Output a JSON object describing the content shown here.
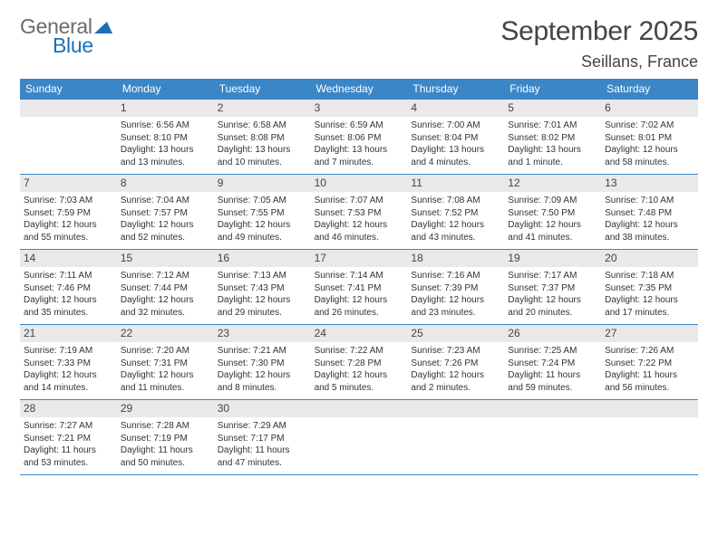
{
  "logo": {
    "word1": "General",
    "word2": "Blue",
    "word1_color": "#6b6b6b",
    "word2_color": "#1d6fb8",
    "triangle_color": "#1d6fb8"
  },
  "title": "September 2025",
  "location": "Seillans, France",
  "colors": {
    "header_bg": "#3b86c7",
    "header_text": "#ffffff",
    "daynum_bg": "#e9e9e9",
    "daynum_text": "#444444",
    "body_text": "#333333",
    "rule": "#3b86c7",
    "page_bg": "#ffffff"
  },
  "day_names": [
    "Sunday",
    "Monday",
    "Tuesday",
    "Wednesday",
    "Thursday",
    "Friday",
    "Saturday"
  ],
  "first_weekday_index": 1,
  "days": [
    {
      "n": 1,
      "sunrise": "6:56 AM",
      "sunset": "8:10 PM",
      "daylight": "13 hours and 13 minutes."
    },
    {
      "n": 2,
      "sunrise": "6:58 AM",
      "sunset": "8:08 PM",
      "daylight": "13 hours and 10 minutes."
    },
    {
      "n": 3,
      "sunrise": "6:59 AM",
      "sunset": "8:06 PM",
      "daylight": "13 hours and 7 minutes."
    },
    {
      "n": 4,
      "sunrise": "7:00 AM",
      "sunset": "8:04 PM",
      "daylight": "13 hours and 4 minutes."
    },
    {
      "n": 5,
      "sunrise": "7:01 AM",
      "sunset": "8:02 PM",
      "daylight": "13 hours and 1 minute."
    },
    {
      "n": 6,
      "sunrise": "7:02 AM",
      "sunset": "8:01 PM",
      "daylight": "12 hours and 58 minutes."
    },
    {
      "n": 7,
      "sunrise": "7:03 AM",
      "sunset": "7:59 PM",
      "daylight": "12 hours and 55 minutes."
    },
    {
      "n": 8,
      "sunrise": "7:04 AM",
      "sunset": "7:57 PM",
      "daylight": "12 hours and 52 minutes."
    },
    {
      "n": 9,
      "sunrise": "7:05 AM",
      "sunset": "7:55 PM",
      "daylight": "12 hours and 49 minutes."
    },
    {
      "n": 10,
      "sunrise": "7:07 AM",
      "sunset": "7:53 PM",
      "daylight": "12 hours and 46 minutes."
    },
    {
      "n": 11,
      "sunrise": "7:08 AM",
      "sunset": "7:52 PM",
      "daylight": "12 hours and 43 minutes."
    },
    {
      "n": 12,
      "sunrise": "7:09 AM",
      "sunset": "7:50 PM",
      "daylight": "12 hours and 41 minutes."
    },
    {
      "n": 13,
      "sunrise": "7:10 AM",
      "sunset": "7:48 PM",
      "daylight": "12 hours and 38 minutes."
    },
    {
      "n": 14,
      "sunrise": "7:11 AM",
      "sunset": "7:46 PM",
      "daylight": "12 hours and 35 minutes."
    },
    {
      "n": 15,
      "sunrise": "7:12 AM",
      "sunset": "7:44 PM",
      "daylight": "12 hours and 32 minutes."
    },
    {
      "n": 16,
      "sunrise": "7:13 AM",
      "sunset": "7:43 PM",
      "daylight": "12 hours and 29 minutes."
    },
    {
      "n": 17,
      "sunrise": "7:14 AM",
      "sunset": "7:41 PM",
      "daylight": "12 hours and 26 minutes."
    },
    {
      "n": 18,
      "sunrise": "7:16 AM",
      "sunset": "7:39 PM",
      "daylight": "12 hours and 23 minutes."
    },
    {
      "n": 19,
      "sunrise": "7:17 AM",
      "sunset": "7:37 PM",
      "daylight": "12 hours and 20 minutes."
    },
    {
      "n": 20,
      "sunrise": "7:18 AM",
      "sunset": "7:35 PM",
      "daylight": "12 hours and 17 minutes."
    },
    {
      "n": 21,
      "sunrise": "7:19 AM",
      "sunset": "7:33 PM",
      "daylight": "12 hours and 14 minutes."
    },
    {
      "n": 22,
      "sunrise": "7:20 AM",
      "sunset": "7:31 PM",
      "daylight": "12 hours and 11 minutes."
    },
    {
      "n": 23,
      "sunrise": "7:21 AM",
      "sunset": "7:30 PM",
      "daylight": "12 hours and 8 minutes."
    },
    {
      "n": 24,
      "sunrise": "7:22 AM",
      "sunset": "7:28 PM",
      "daylight": "12 hours and 5 minutes."
    },
    {
      "n": 25,
      "sunrise": "7:23 AM",
      "sunset": "7:26 PM",
      "daylight": "12 hours and 2 minutes."
    },
    {
      "n": 26,
      "sunrise": "7:25 AM",
      "sunset": "7:24 PM",
      "daylight": "11 hours and 59 minutes."
    },
    {
      "n": 27,
      "sunrise": "7:26 AM",
      "sunset": "7:22 PM",
      "daylight": "11 hours and 56 minutes."
    },
    {
      "n": 28,
      "sunrise": "7:27 AM",
      "sunset": "7:21 PM",
      "daylight": "11 hours and 53 minutes."
    },
    {
      "n": 29,
      "sunrise": "7:28 AM",
      "sunset": "7:19 PM",
      "daylight": "11 hours and 50 minutes."
    },
    {
      "n": 30,
      "sunrise": "7:29 AM",
      "sunset": "7:17 PM",
      "daylight": "11 hours and 47 minutes."
    }
  ],
  "labels": {
    "sunrise": "Sunrise:",
    "sunset": "Sunset:",
    "daylight": "Daylight:"
  }
}
